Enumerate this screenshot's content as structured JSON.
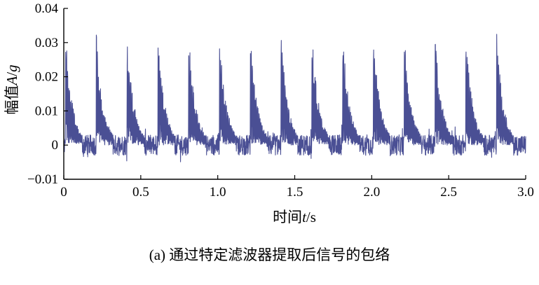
{
  "chart_data": {
    "type": "line",
    "xlabel": {
      "prefix": "时间",
      "var": "t",
      "unit": "/s"
    },
    "ylabel": {
      "prefix": "幅值",
      "var": "A",
      "sep": "/",
      "unit": "g"
    },
    "xlim": [
      0,
      3.0
    ],
    "ylim": [
      -0.01,
      0.04
    ],
    "xticks": [
      0,
      0.5,
      1.0,
      1.5,
      2.0,
      2.5,
      3.0
    ],
    "xtick_labels": [
      "0",
      "0.5",
      "1.0",
      "1.5",
      "2.0",
      "2.5",
      "3.0"
    ],
    "yticks": [
      -0.01,
      0,
      0.01,
      0.02,
      0.03,
      0.04
    ],
    "ytick_labels": [
      "−0.01",
      "0",
      "0.01",
      "0.02",
      "0.03",
      "0.04"
    ],
    "grid": false,
    "series": [
      {
        "color": "#4a4f94",
        "burst_period_s": 0.2,
        "burst_start_times_s": [
          0.01,
          0.21,
          0.41,
          0.61,
          0.81,
          1.01,
          1.21,
          1.41,
          1.61,
          1.81,
          2.01,
          2.21,
          2.41,
          2.61,
          2.81
        ],
        "burst_peak_amplitudes": [
          0.034,
          0.034,
          0.0335,
          0.034,
          0.034,
          0.034,
          0.034,
          0.0338,
          0.034,
          0.034,
          0.034,
          0.034,
          0.034,
          0.034,
          0.034
        ],
        "noise_band": [
          -0.003,
          0.003
        ]
      }
    ]
  },
  "caption": "(a) 通过特定滤波器提取后信号的包络"
}
